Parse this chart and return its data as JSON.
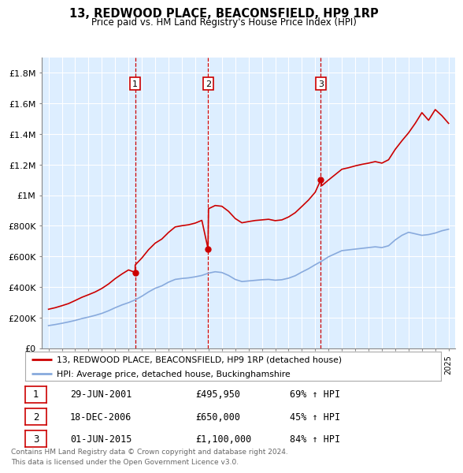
{
  "title": "13, REDWOOD PLACE, BEACONSFIELD, HP9 1RP",
  "subtitle": "Price paid vs. HM Land Registry's House Price Index (HPI)",
  "ylim": [
    0,
    1900000
  ],
  "yticks": [
    0,
    200000,
    400000,
    600000,
    800000,
    1000000,
    1200000,
    1400000,
    1600000,
    1800000
  ],
  "ytick_labels": [
    "£0",
    "£200K",
    "£400K",
    "£600K",
    "£800K",
    "£1M",
    "£1.2M",
    "£1.4M",
    "£1.6M",
    "£1.8M"
  ],
  "background_color": "#ffffff",
  "plot_bg_color": "#ddeeff",
  "grid_color": "#ffffff",
  "purchase_prices": [
    495950,
    650000,
    1100000
  ],
  "purchase_year_floats": [
    2001.494,
    2006.962,
    2015.414
  ],
  "purchase_labels": [
    "1",
    "2",
    "3"
  ],
  "legend_label_red": "13, REDWOOD PLACE, BEACONSFIELD, HP9 1RP (detached house)",
  "legend_label_blue": "HPI: Average price, detached house, Buckinghamshire",
  "footer_line1": "Contains HM Land Registry data © Crown copyright and database right 2024.",
  "footer_line2": "This data is licensed under the Open Government Licence v3.0.",
  "table_rows": [
    [
      "1",
      "29-JUN-2001",
      "£495,950",
      "69% ↑ HPI"
    ],
    [
      "2",
      "18-DEC-2006",
      "£650,000",
      "45% ↑ HPI"
    ],
    [
      "3",
      "01-JUN-2015",
      "£1,100,000",
      "84% ↑ HPI"
    ]
  ],
  "red_line_color": "#cc0000",
  "blue_line_color": "#88aadd",
  "dashed_color": "#cc0000",
  "years_hpi": [
    1995.0,
    1995.5,
    1996.0,
    1996.5,
    1997.0,
    1997.5,
    1998.0,
    1998.5,
    1999.0,
    1999.5,
    2000.0,
    2000.5,
    2001.0,
    2001.5,
    2002.0,
    2002.5,
    2003.0,
    2003.5,
    2004.0,
    2004.5,
    2005.0,
    2005.5,
    2006.0,
    2006.5,
    2007.0,
    2007.5,
    2008.0,
    2008.5,
    2009.0,
    2009.5,
    2010.0,
    2010.5,
    2011.0,
    2011.5,
    2012.0,
    2012.5,
    2013.0,
    2013.5,
    2014.0,
    2014.5,
    2015.0,
    2015.5,
    2016.0,
    2016.5,
    2017.0,
    2017.5,
    2018.0,
    2018.5,
    2019.0,
    2019.5,
    2020.0,
    2020.5,
    2021.0,
    2021.5,
    2022.0,
    2022.5,
    2023.0,
    2023.5,
    2024.0,
    2024.5,
    2025.0
  ],
  "hpi_values": [
    148000,
    155000,
    163000,
    172000,
    182000,
    194000,
    204000,
    215000,
    228000,
    245000,
    265000,
    283000,
    298000,
    316000,
    340000,
    368000,
    392000,
    408000,
    432000,
    450000,
    456000,
    460000,
    467000,
    476000,
    491000,
    500000,
    495000,
    476000,
    450000,
    436000,
    440000,
    444000,
    448000,
    450000,
    445000,
    448000,
    458000,
    474000,
    498000,
    520000,
    546000,
    570000,
    598000,
    618000,
    638000,
    643000,
    648000,
    653000,
    658000,
    663000,
    658000,
    670000,
    708000,
    738000,
    758000,
    748000,
    738000,
    743000,
    753000,
    768000,
    778000
  ],
  "years_red": [
    1995.0,
    1995.5,
    1996.0,
    1996.5,
    1997.0,
    1997.5,
    1998.0,
    1998.5,
    1999.0,
    1999.5,
    2000.0,
    2000.5,
    2001.0,
    2001.494,
    2001.5,
    2002.0,
    2002.5,
    2003.0,
    2003.5,
    2004.0,
    2004.5,
    2005.0,
    2005.5,
    2006.0,
    2006.5,
    2006.962,
    2007.0,
    2007.5,
    2008.0,
    2008.5,
    2009.0,
    2009.5,
    2010.0,
    2010.5,
    2011.0,
    2011.5,
    2012.0,
    2012.5,
    2013.0,
    2013.5,
    2014.0,
    2014.5,
    2015.0,
    2015.414,
    2015.5,
    2016.0,
    2016.5,
    2017.0,
    2017.5,
    2018.0,
    2018.5,
    2019.0,
    2019.5,
    2020.0,
    2020.5,
    2021.0,
    2021.5,
    2022.0,
    2022.5,
    2023.0,
    2023.5,
    2024.0,
    2024.5,
    2025.0
  ],
  "red_values": [
    255000,
    265000,
    278000,
    292000,
    312000,
    333000,
    350000,
    368000,
    391000,
    420000,
    455000,
    485000,
    512000,
    495950,
    544000,
    590000,
    644000,
    687000,
    714000,
    757000,
    793000,
    801000,
    807000,
    818000,
    836000,
    650000,
    912000,
    933000,
    928000,
    895000,
    848000,
    820000,
    828000,
    835000,
    839000,
    843000,
    834000,
    839000,
    858000,
    886000,
    927000,
    969000,
    1020000,
    1100000,
    1063000,
    1100000,
    1135000,
    1170000,
    1180000,
    1192000,
    1202000,
    1210000,
    1220000,
    1210000,
    1232000,
    1300000,
    1356000,
    1408000,
    1470000,
    1540000,
    1490000,
    1560000,
    1520000,
    1470000
  ]
}
